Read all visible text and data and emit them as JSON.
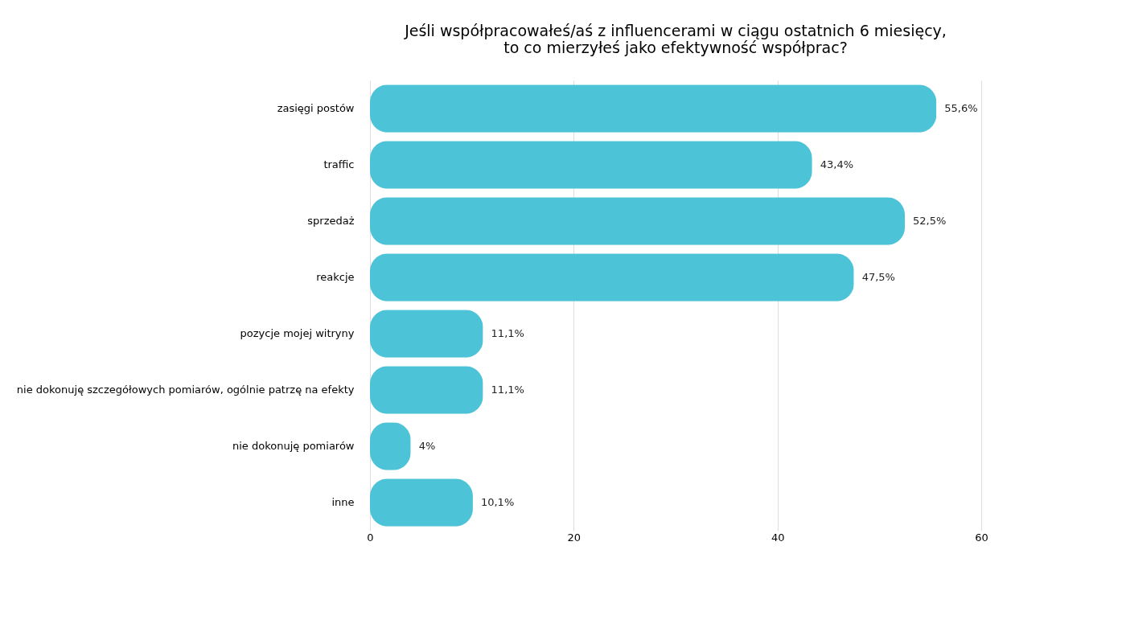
{
  "chart_data": {
    "type": "bar",
    "orientation": "horizontal",
    "title": "Jeśli współpracowałeś/aś z influencerami w ciągu ostatnich 6 miesięcy,\nto co mierzyłeś jako efektywność współprac?",
    "categories": [
      "zasięgi postów",
      "traffic",
      "sprzedaż",
      "reakcje",
      "pozycje mojej witryny",
      "nie dokonuję szczegółowych pomiarów, ogólnie patrzę na efekty",
      "nie dokonuję pomiarów",
      "inne"
    ],
    "values": [
      55.6,
      43.4,
      52.5,
      47.5,
      11.1,
      11.1,
      4,
      10.1
    ],
    "value_labels": [
      "55,6%",
      "43,4%",
      "52,5%",
      "47,5%",
      "11,1%",
      "11,1%",
      "4%",
      "10,1%"
    ],
    "color": "#4cc3d6",
    "xlim": [
      0,
      60
    ],
    "xticks": [
      0,
      20,
      40,
      60
    ],
    "grid": "x"
  }
}
